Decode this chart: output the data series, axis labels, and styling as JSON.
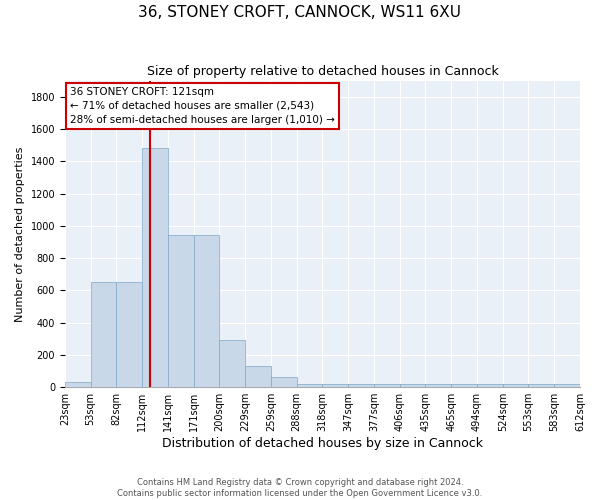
{
  "title": "36, STONEY CROFT, CANNOCK, WS11 6XU",
  "subtitle": "Size of property relative to detached houses in Cannock",
  "xlabel": "Distribution of detached houses by size in Cannock",
  "ylabel": "Number of detached properties",
  "bin_labels": [
    "23sqm",
    "53sqm",
    "82sqm",
    "112sqm",
    "141sqm",
    "171sqm",
    "200sqm",
    "229sqm",
    "259sqm",
    "288sqm",
    "318sqm",
    "347sqm",
    "377sqm",
    "406sqm",
    "435sqm",
    "465sqm",
    "494sqm",
    "524sqm",
    "553sqm",
    "583sqm",
    "612sqm"
  ],
  "bar_heights": [
    35,
    650,
    650,
    1480,
    940,
    940,
    290,
    130,
    65,
    20,
    20,
    20,
    20,
    20,
    20,
    20,
    20,
    20,
    20,
    20
  ],
  "bar_color": "#c8d8e8",
  "bar_edge_color": "#7fa8c8",
  "vline_color": "#cc0000",
  "annotation_text": "36 STONEY CROFT: 121sqm\n← 71% of detached houses are smaller (2,543)\n28% of semi-detached houses are larger (1,010) →",
  "annotation_box_color": "#ffffff",
  "annotation_box_edge_color": "#cc0000",
  "ylim": [
    0,
    1900
  ],
  "yticks": [
    0,
    200,
    400,
    600,
    800,
    1000,
    1200,
    1400,
    1600,
    1800
  ],
  "background_color": "#eaf0f8",
  "footer_line1": "Contains HM Land Registry data © Crown copyright and database right 2024.",
  "footer_line2": "Contains public sector information licensed under the Open Government Licence v3.0.",
  "title_fontsize": 11,
  "subtitle_fontsize": 9,
  "axis_label_fontsize": 8,
  "tick_fontsize": 7
}
